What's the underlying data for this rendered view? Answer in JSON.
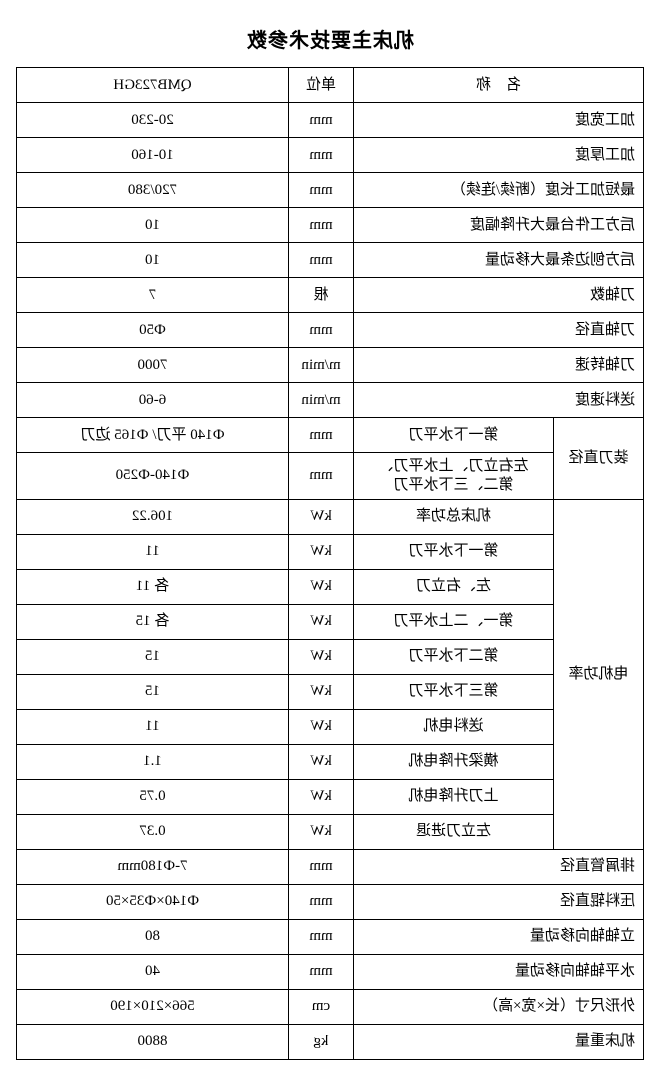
{
  "title": "机床主要技术参数",
  "header": {
    "name_label": "名　称",
    "unit_label": "单位",
    "model_label": "QMB723GH"
  },
  "rows": {
    "r1": {
      "name": "加工宽度",
      "unit": "mm",
      "value": "20-230"
    },
    "r2": {
      "name": "加工厚度",
      "unit": "mm",
      "value": "10-160"
    },
    "r3": {
      "name": "最短加工长度（断续/连续）",
      "unit": "mm",
      "value": "720/380"
    },
    "r4": {
      "name": "后方工件台最大升降幅度",
      "unit": "mm",
      "value": "10"
    },
    "r5": {
      "name": "后方刨边条最大移动量",
      "unit": "mm",
      "value": "10"
    },
    "r6": {
      "name": "刀轴数",
      "unit": "根",
      "value": "7"
    },
    "r7": {
      "name": "刀轴直径",
      "unit": "mm",
      "value": "Ф50"
    },
    "r8": {
      "name": "刀轴转速",
      "unit": "m/min",
      "value": "7000"
    },
    "r9": {
      "name": "送料速度",
      "unit": "m/min",
      "value": "6-60"
    },
    "r10g": {
      "group": "装刀直径"
    },
    "r10a": {
      "name": "第一下水平刀",
      "unit": "mm",
      "value": "Ф140 平刀/ Ф165 边刀"
    },
    "r10b": {
      "name": "左右立刀、上水平刀、\n第二、三下水平刀",
      "unit": "mm",
      "value": "Ф140-Ф250"
    },
    "r11g": {
      "group": "电机功率"
    },
    "r11": {
      "name": "机床总功率",
      "unit": "kW",
      "value": "106.22"
    },
    "r12": {
      "name": "第一下水平刀",
      "unit": "kW",
      "value": "11"
    },
    "r13": {
      "name": "左、右立刀",
      "unit": "kW",
      "value": "各 11"
    },
    "r14": {
      "name": "第一、二上水平刀",
      "unit": "kW",
      "value": "各 15"
    },
    "r15": {
      "name": "第二下水平刀",
      "unit": "kW",
      "value": "15"
    },
    "r16": {
      "name": "第三下水平刀",
      "unit": "kW",
      "value": "15"
    },
    "r17": {
      "name": "送料电机",
      "unit": "kW",
      "value": "11"
    },
    "r18": {
      "name": "横梁升降电机",
      "unit": "kW",
      "value": "1.1"
    },
    "r19": {
      "name": "上刀升降电机",
      "unit": "kW",
      "value": "0.75"
    },
    "r20": {
      "name": "左立刀进退",
      "unit": "kW",
      "value": "0.37"
    },
    "r21": {
      "name": "排屑管直径",
      "unit": "mm",
      "value": "7-Ф180mm"
    },
    "r22": {
      "name": "压料辊直径",
      "unit": "mm",
      "value": "Ф140×Ф35×50"
    },
    "r23": {
      "name": "立轴轴向移动量",
      "unit": "mm",
      "value": "80"
    },
    "r24": {
      "name": "水平轴轴向移动量",
      "unit": "mm",
      "value": "40"
    },
    "r25": {
      "name": "外形尺寸（长×宽×高）",
      "unit": "cm",
      "value": "566×210×190"
    },
    "r26": {
      "name": "机床重量",
      "unit": "kg",
      "value": "8800"
    }
  }
}
